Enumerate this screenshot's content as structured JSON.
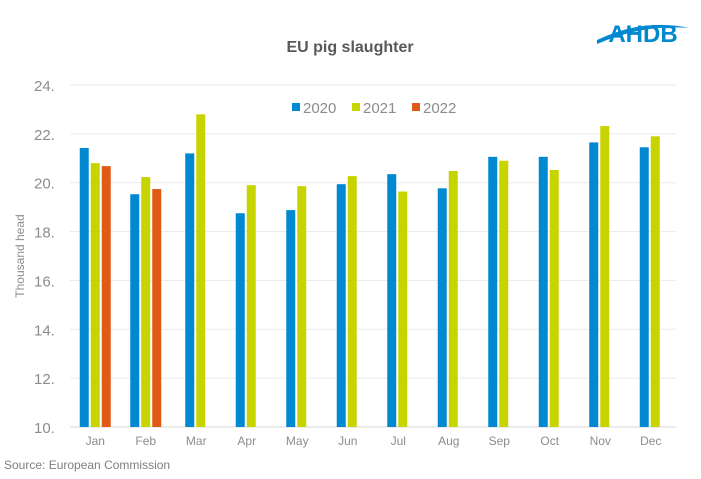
{
  "logo_text": "AHDB",
  "source": "Source: European Commission",
  "chart_data": {
    "type": "bar",
    "title": "EU pig slaughter",
    "xlabel": "",
    "ylabel": "Thousand head",
    "ylim": [
      10,
      24
    ],
    "yticks": [
      "10.",
      "12.",
      "14.",
      "16.",
      "18.",
      "20.",
      "22.",
      "24."
    ],
    "grid": true,
    "legend_position": "top",
    "categories": [
      "Jan",
      "Feb",
      "Mar",
      "Apr",
      "May",
      "Jun",
      "Jul",
      "Aug",
      "Sep",
      "Oct",
      "Nov",
      "Dec"
    ],
    "series": [
      {
        "name": "2020",
        "color": "#0089d0",
        "values": [
          21.42,
          19.53,
          21.2,
          18.75,
          18.88,
          19.94,
          20.35,
          19.77,
          21.06,
          21.06,
          21.65,
          21.45
        ]
      },
      {
        "name": "2021",
        "color": "#c8d400",
        "values": [
          20.8,
          20.23,
          22.8,
          19.9,
          19.86,
          20.27,
          19.64,
          20.48,
          20.9,
          20.52,
          22.32,
          21.9
        ]
      },
      {
        "name": "2022",
        "color": "#e05a16",
        "values": [
          20.68,
          19.74,
          null,
          null,
          null,
          null,
          null,
          null,
          null,
          null,
          null,
          null
        ]
      }
    ]
  }
}
